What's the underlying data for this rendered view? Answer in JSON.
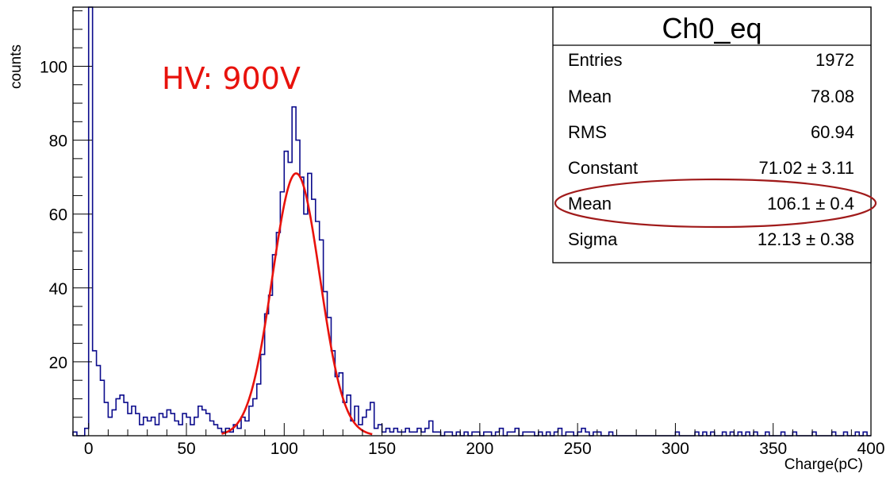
{
  "chart_data": {
    "type": "histogram",
    "title": "",
    "xlabel": "Charge(pC)",
    "ylabel": "counts",
    "xlim": [
      -8,
      400
    ],
    "ylim": [
      0,
      116
    ],
    "x_ticks": [
      0,
      50,
      100,
      150,
      200,
      250,
      300,
      350,
      400
    ],
    "y_ticks": [
      20,
      40,
      60,
      80,
      100
    ],
    "grid": false,
    "annotation": "HV: 900V",
    "bin_width": 2,
    "series": [
      {
        "kind": "histogram",
        "color": "#0b0b8c",
        "bins": [
          [
            -8,
            1
          ],
          [
            -6,
            0
          ],
          [
            -4,
            0
          ],
          [
            -2,
            2
          ],
          [
            0,
            116
          ],
          [
            2,
            23
          ],
          [
            4,
            19
          ],
          [
            6,
            15
          ],
          [
            8,
            9
          ],
          [
            10,
            5
          ],
          [
            12,
            7
          ],
          [
            14,
            10
          ],
          [
            16,
            11
          ],
          [
            18,
            9
          ],
          [
            20,
            6
          ],
          [
            22,
            8
          ],
          [
            24,
            6
          ],
          [
            26,
            3
          ],
          [
            28,
            5
          ],
          [
            30,
            4
          ],
          [
            32,
            5
          ],
          [
            34,
            3
          ],
          [
            36,
            6
          ],
          [
            38,
            5
          ],
          [
            40,
            7
          ],
          [
            42,
            6
          ],
          [
            44,
            4
          ],
          [
            46,
            3
          ],
          [
            48,
            6
          ],
          [
            50,
            5
          ],
          [
            52,
            3
          ],
          [
            54,
            5
          ],
          [
            56,
            8
          ],
          [
            58,
            7
          ],
          [
            60,
            6
          ],
          [
            62,
            4
          ],
          [
            64,
            3
          ],
          [
            66,
            2
          ],
          [
            68,
            1
          ],
          [
            70,
            2
          ],
          [
            72,
            1
          ],
          [
            74,
            3
          ],
          [
            76,
            2
          ],
          [
            78,
            5
          ],
          [
            80,
            4
          ],
          [
            82,
            8
          ],
          [
            84,
            10
          ],
          [
            86,
            14
          ],
          [
            88,
            22
          ],
          [
            90,
            33
          ],
          [
            92,
            38
          ],
          [
            94,
            49
          ],
          [
            96,
            55
          ],
          [
            98,
            66
          ],
          [
            100,
            77
          ],
          [
            102,
            74
          ],
          [
            104,
            89
          ],
          [
            106,
            80
          ],
          [
            108,
            70
          ],
          [
            110,
            60
          ],
          [
            112,
            71
          ],
          [
            114,
            64
          ],
          [
            116,
            58
          ],
          [
            118,
            53
          ],
          [
            120,
            39
          ],
          [
            122,
            32
          ],
          [
            124,
            23
          ],
          [
            126,
            16
          ],
          [
            128,
            17
          ],
          [
            130,
            9
          ],
          [
            132,
            11
          ],
          [
            134,
            4
          ],
          [
            136,
            8
          ],
          [
            138,
            3
          ],
          [
            140,
            5
          ],
          [
            142,
            7
          ],
          [
            144,
            9
          ],
          [
            146,
            2
          ],
          [
            148,
            3
          ],
          [
            150,
            1
          ],
          [
            152,
            2
          ],
          [
            154,
            1
          ],
          [
            156,
            2
          ],
          [
            158,
            1
          ],
          [
            160,
            1
          ],
          [
            162,
            2
          ],
          [
            164,
            1
          ],
          [
            166,
            1
          ],
          [
            168,
            2
          ],
          [
            170,
            1
          ],
          [
            172,
            2
          ],
          [
            174,
            4
          ],
          [
            176,
            1
          ],
          [
            178,
            1
          ],
          [
            180,
            0
          ],
          [
            182,
            1
          ],
          [
            184,
            1
          ],
          [
            186,
            0
          ],
          [
            188,
            1
          ],
          [
            190,
            0
          ],
          [
            192,
            1
          ],
          [
            194,
            0
          ],
          [
            196,
            1
          ],
          [
            198,
            1
          ],
          [
            200,
            0
          ],
          [
            202,
            1
          ],
          [
            204,
            1
          ],
          [
            206,
            0
          ],
          [
            208,
            1
          ],
          [
            210,
            2
          ],
          [
            212,
            0
          ],
          [
            214,
            1
          ],
          [
            216,
            1
          ],
          [
            218,
            2
          ],
          [
            220,
            0
          ],
          [
            222,
            1
          ],
          [
            224,
            1
          ],
          [
            226,
            1
          ],
          [
            228,
            0
          ],
          [
            230,
            1
          ],
          [
            232,
            0
          ],
          [
            234,
            1
          ],
          [
            236,
            0
          ],
          [
            238,
            1
          ],
          [
            240,
            2
          ],
          [
            242,
            0
          ],
          [
            244,
            1
          ],
          [
            246,
            1
          ],
          [
            248,
            0
          ],
          [
            250,
            1
          ],
          [
            252,
            2
          ],
          [
            254,
            1
          ],
          [
            256,
            0
          ],
          [
            258,
            1
          ],
          [
            260,
            1
          ],
          [
            262,
            0
          ],
          [
            264,
            0
          ],
          [
            266,
            1
          ],
          [
            268,
            0
          ],
          [
            270,
            0
          ],
          [
            272,
            0
          ],
          [
            274,
            0
          ],
          [
            276,
            0
          ],
          [
            278,
            0
          ],
          [
            280,
            0
          ],
          [
            282,
            0
          ],
          [
            284,
            0
          ],
          [
            286,
            0
          ],
          [
            288,
            0
          ],
          [
            290,
            0
          ],
          [
            292,
            0
          ],
          [
            294,
            0
          ],
          [
            296,
            0
          ],
          [
            298,
            0
          ],
          [
            300,
            1
          ],
          [
            302,
            0
          ],
          [
            304,
            0
          ],
          [
            306,
            0
          ],
          [
            308,
            0
          ],
          [
            310,
            1
          ],
          [
            312,
            0
          ],
          [
            314,
            1
          ],
          [
            316,
            0
          ],
          [
            318,
            1
          ],
          [
            320,
            0
          ],
          [
            322,
            0
          ],
          [
            324,
            1
          ],
          [
            326,
            0
          ],
          [
            328,
            1
          ],
          [
            330,
            0
          ],
          [
            332,
            1
          ],
          [
            334,
            0
          ],
          [
            336,
            1
          ],
          [
            338,
            0
          ],
          [
            340,
            1
          ],
          [
            342,
            0
          ],
          [
            344,
            0
          ],
          [
            346,
            1
          ],
          [
            348,
            0
          ],
          [
            350,
            0
          ],
          [
            352,
            0
          ],
          [
            354,
            1
          ],
          [
            356,
            0
          ],
          [
            358,
            0
          ],
          [
            360,
            1
          ],
          [
            362,
            0
          ],
          [
            364,
            0
          ],
          [
            366,
            0
          ],
          [
            368,
            0
          ],
          [
            370,
            1
          ],
          [
            372,
            0
          ],
          [
            374,
            0
          ],
          [
            376,
            0
          ],
          [
            378,
            0
          ],
          [
            380,
            1
          ],
          [
            382,
            0
          ],
          [
            384,
            0
          ],
          [
            386,
            1
          ],
          [
            388,
            0
          ],
          [
            390,
            0
          ],
          [
            392,
            1
          ],
          [
            394,
            0
          ],
          [
            396,
            1
          ],
          [
            398,
            0
          ]
        ]
      },
      {
        "kind": "gaussian-fit",
        "color": "#e8120c",
        "constant": 71.02,
        "mean": 106.1,
        "sigma": 12.13,
        "x_range": [
          68,
          145
        ]
      }
    ],
    "stats_box": {
      "title": "Ch0_eq",
      "rows": [
        {
          "label": "Entries",
          "value": "1972"
        },
        {
          "label": "Mean",
          "value": "78.08"
        },
        {
          "label": "RMS",
          "value": "60.94"
        },
        {
          "label": "Constant",
          "value": "71.02 ± 3.11"
        },
        {
          "label": "Mean",
          "value": "106.1 ± 0.4"
        },
        {
          "label": "Sigma",
          "value": "12.13 ± 0.38"
        }
      ],
      "highlighted_row": 4,
      "highlight_color": "#a01a1a"
    }
  }
}
